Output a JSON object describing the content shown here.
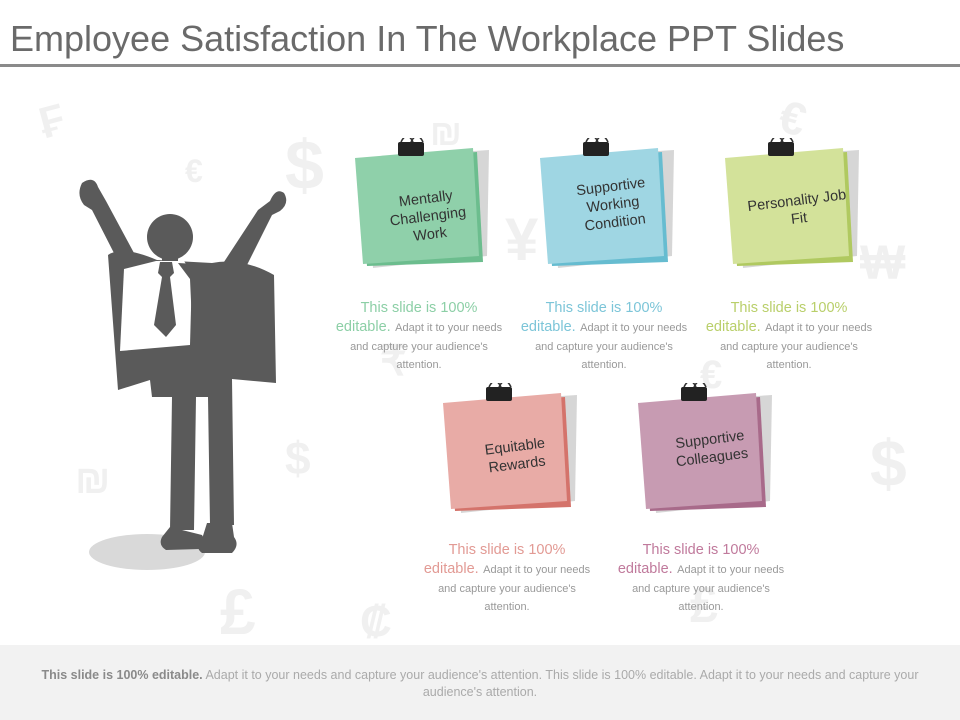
{
  "title": "Employee Satisfaction In The Workplace PPT Slides",
  "background_symbols": [
    "₣",
    "$",
    "€",
    "₪",
    "$",
    "€",
    "₩",
    "$",
    "€",
    "₪",
    "¥",
    "₹",
    "₤",
    "£",
    "₡"
  ],
  "notes": [
    {
      "label": "Mentally Challenging Work",
      "color": "#8fd0aa",
      "shade": "#6cbd8e",
      "text_color": "#8ccfa6",
      "caption_lead": "This slide is 100% editable.",
      "caption_rest": "Adapt it to your needs and capture your audience's attention."
    },
    {
      "label": "Supportive Working Condition",
      "color": "#9fd6e3",
      "shade": "#66bcd0",
      "text_color": "#7cc5d8",
      "caption_lead": "This slide is 100% editable.",
      "caption_rest": "Adapt it to your needs and capture your audience's attention."
    },
    {
      "label": "Personality Job Fit",
      "color": "#d3e29a",
      "shade": "#b0c960",
      "text_color": "#b9cf6a",
      "caption_lead": "This slide is 100% editable.",
      "caption_rest": "Adapt it to your needs and capture your audience's attention."
    },
    {
      "label": "Equitable Rewards",
      "color": "#e8aba6",
      "shade": "#d4736b",
      "text_color": "#e29a94",
      "caption_lead": "This slide is 100% editable.",
      "caption_rest": "Adapt it to your needs and capture your audience's attention."
    },
    {
      "label": "Supportive Colleagues",
      "color": "#c79bb2",
      "shade": "#a86a8a",
      "text_color": "#c07a9c",
      "caption_lead": "This slide is 100% editable.",
      "caption_rest": "Adapt it to your needs and capture your audience's attention."
    }
  ],
  "footer": {
    "bold": "This slide is 100% editable.",
    "rest": "Adapt it to your needs and capture your audience's attention. This slide is 100% editable. Adapt it to your needs and capture your audience's attention."
  },
  "figure_color": "#5a5a5a",
  "shadow_color": "#d9d9d9"
}
